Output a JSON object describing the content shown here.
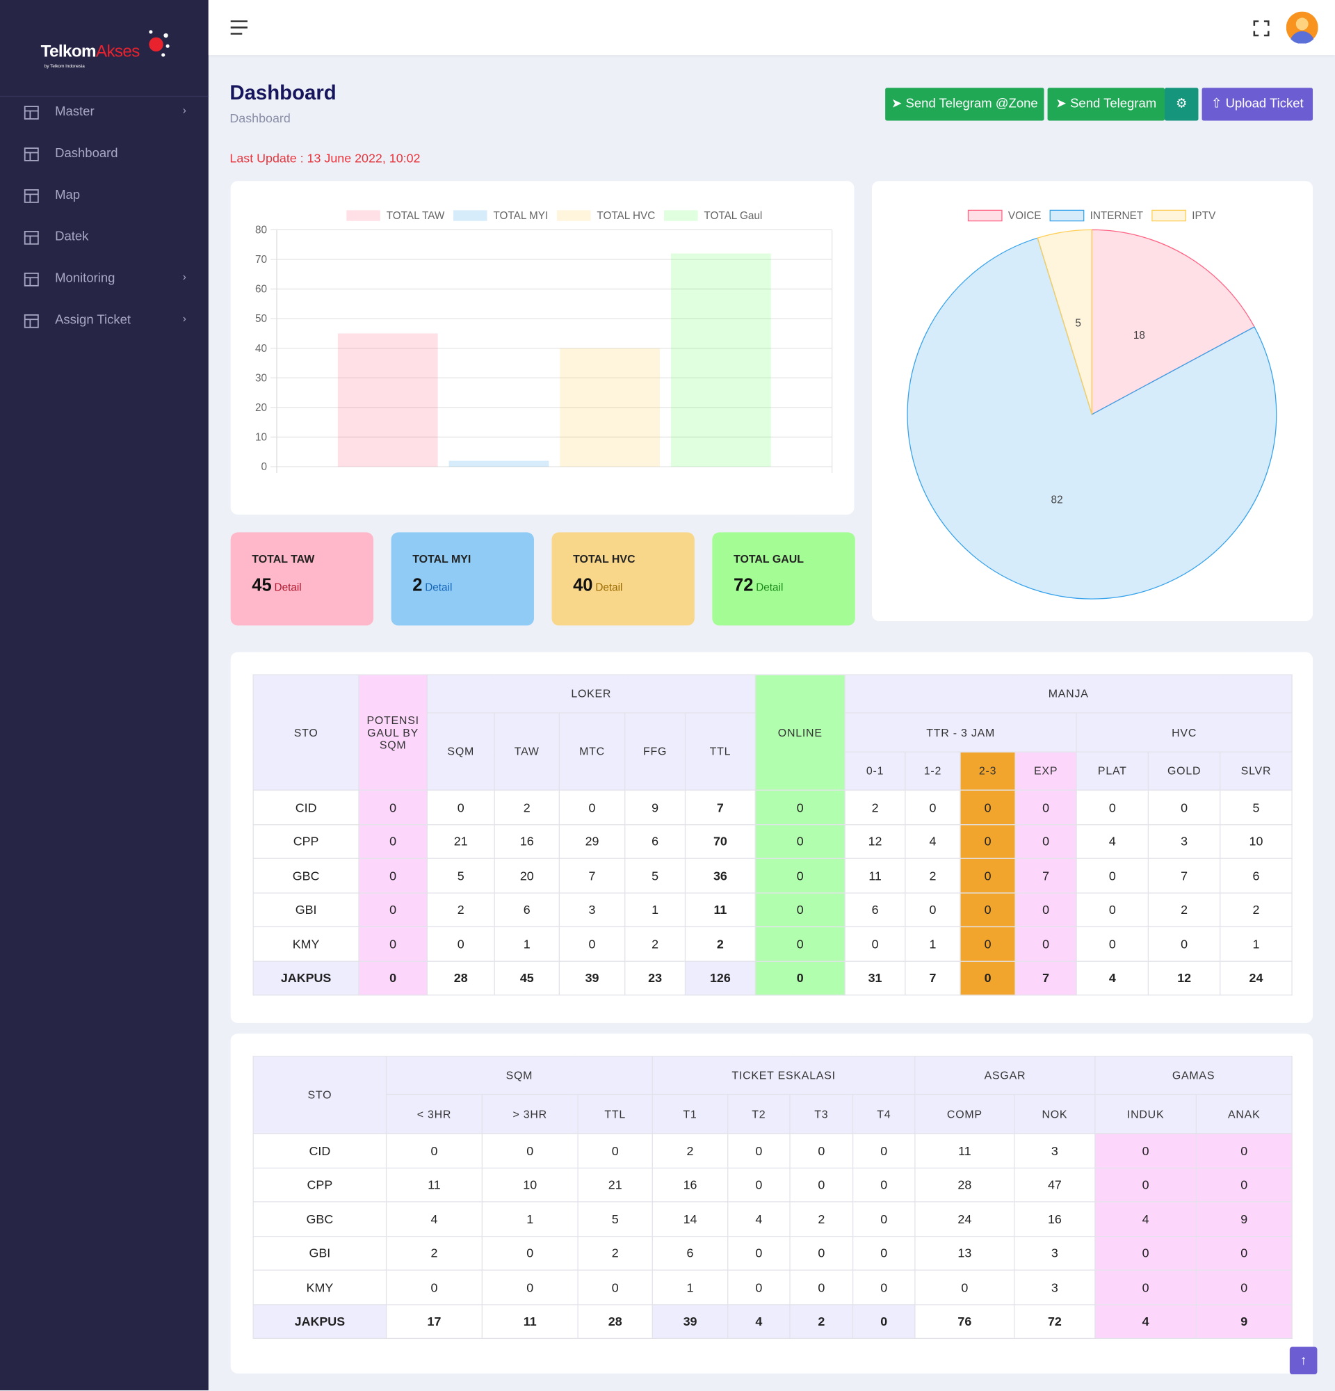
{
  "brand": {
    "part1": "Telkom",
    "part2": "Akses",
    "tagline": "by Telkom Indonesia"
  },
  "nav": [
    "Master",
    "Dashboard",
    "Map",
    "Datek",
    "Monitoring",
    "Assign Ticket"
  ],
  "header": {
    "title": "Dashboard",
    "breadcrumb": "Dashboard",
    "last_update": "Last Update : 13 June 2022, 10:02"
  },
  "buttons": [
    "Send Telegram @Zone",
    "Send Telegram",
    "Upload Ticket"
  ],
  "chart_data": [
    {
      "type": "bar",
      "categories": [
        null
      ],
      "series": [
        {
          "name": "TOTAL TAW",
          "color": "rgba(255,99,132,0.2)",
          "values": [
            45
          ]
        },
        {
          "name": "TOTAL MYI",
          "color": "rgba(54,162,235,0.2)",
          "values": [
            2
          ]
        },
        {
          "name": "TOTAL HVC",
          "color": "rgba(255,206,86,0.2)",
          "values": [
            40
          ]
        },
        {
          "name": "TOTAL Gaul",
          "color": "rgba(75,255,75,0.18)",
          "values": [
            72
          ]
        }
      ],
      "ylim": [
        0,
        80
      ],
      "yticks": [
        0,
        10,
        20,
        30,
        40,
        50,
        60,
        70,
        80
      ],
      "grid": true,
      "legend": "top"
    },
    {
      "type": "pie",
      "categories": [
        "VOICE",
        "INTERNET",
        "IPTV"
      ],
      "values": [
        18,
        82,
        5
      ],
      "colors": [
        "rgba(255,99,132,0.2)",
        "rgba(54,162,235,0.2)",
        "rgba(255,206,86,0.2)"
      ],
      "border_colors": [
        "#ff6384",
        "#36a2eb",
        "#ffce56"
      ],
      "legend": "top"
    }
  ],
  "cards": [
    {
      "title": "TOTAL TAW",
      "value": "45",
      "link": "Detail"
    },
    {
      "title": "TOTAL MYI",
      "value": "2",
      "link": "Detail"
    },
    {
      "title": "TOTAL HVC",
      "value": "40",
      "link": "Detail"
    },
    {
      "title": "TOTAL GAUL",
      "value": "72",
      "link": "Detail"
    }
  ],
  "table1": {
    "headers": {
      "sto": "STO",
      "potensi": "POTENSI GAUL BY SQM",
      "loker": "LOKER",
      "loker_cols": [
        "SQM",
        "TAW",
        "MTC",
        "FFG",
        "TTL"
      ],
      "online": "ONLINE",
      "manja": "MANJA",
      "ttr": "TTR - 3 JAM",
      "ttr_cols": [
        "0-1",
        "1-2",
        "2-3",
        "EXP"
      ],
      "hvc": "HVC",
      "hvc_cols": [
        "PLAT",
        "GOLD",
        "SLVR"
      ]
    },
    "rows": [
      [
        "CID",
        "0",
        "0",
        "2",
        "0",
        "9",
        "7",
        "0",
        "2",
        "0",
        "0",
        "0",
        "0",
        "0",
        "5"
      ],
      [
        "CPP",
        "0",
        "21",
        "16",
        "29",
        "6",
        "70",
        "0",
        "12",
        "4",
        "0",
        "0",
        "4",
        "3",
        "10"
      ],
      [
        "GBC",
        "0",
        "5",
        "20",
        "7",
        "5",
        "36",
        "0",
        "11",
        "2",
        "0",
        "7",
        "0",
        "7",
        "6"
      ],
      [
        "GBI",
        "0",
        "2",
        "6",
        "3",
        "1",
        "11",
        "0",
        "6",
        "0",
        "0",
        "0",
        "0",
        "2",
        "2"
      ],
      [
        "KMY",
        "0",
        "0",
        "1",
        "0",
        "2",
        "2",
        "0",
        "0",
        "1",
        "0",
        "0",
        "0",
        "0",
        "1"
      ],
      [
        "JAKPUS",
        "0",
        "28",
        "45",
        "39",
        "23",
        "126",
        "0",
        "31",
        "7",
        "0",
        "7",
        "4",
        "12",
        "24"
      ]
    ]
  },
  "table2": {
    "headers": {
      "sto": "STO",
      "sqm": "SQM",
      "sqm_cols": [
        "< 3HR",
        "> 3HR",
        "TTL"
      ],
      "eskalasi": "TICKET ESKALASI",
      "eskalasi_cols": [
        "T1",
        "T2",
        "T3",
        "T4"
      ],
      "asgar": "ASGAR",
      "asgar_cols": [
        "COMP",
        "NOK"
      ],
      "gamas": "GAMAS",
      "gamas_cols": [
        "INDUK",
        "ANAK"
      ]
    },
    "rows": [
      [
        "CID",
        "0",
        "0",
        "0",
        "2",
        "0",
        "0",
        "0",
        "11",
        "3",
        "0",
        "0"
      ],
      [
        "CPP",
        "11",
        "10",
        "21",
        "16",
        "0",
        "0",
        "0",
        "28",
        "47",
        "0",
        "0"
      ],
      [
        "GBC",
        "4",
        "1",
        "5",
        "14",
        "4",
        "2",
        "0",
        "24",
        "16",
        "4",
        "9"
      ],
      [
        "GBI",
        "2",
        "0",
        "2",
        "6",
        "0",
        "0",
        "0",
        "13",
        "3",
        "0",
        "0"
      ],
      [
        "KMY",
        "0",
        "0",
        "0",
        "1",
        "0",
        "0",
        "0",
        "0",
        "3",
        "0",
        "0"
      ],
      [
        "JAKPUS",
        "17",
        "11",
        "28",
        "39",
        "4",
        "2",
        "0",
        "76",
        "72",
        "4",
        "9"
      ]
    ]
  }
}
